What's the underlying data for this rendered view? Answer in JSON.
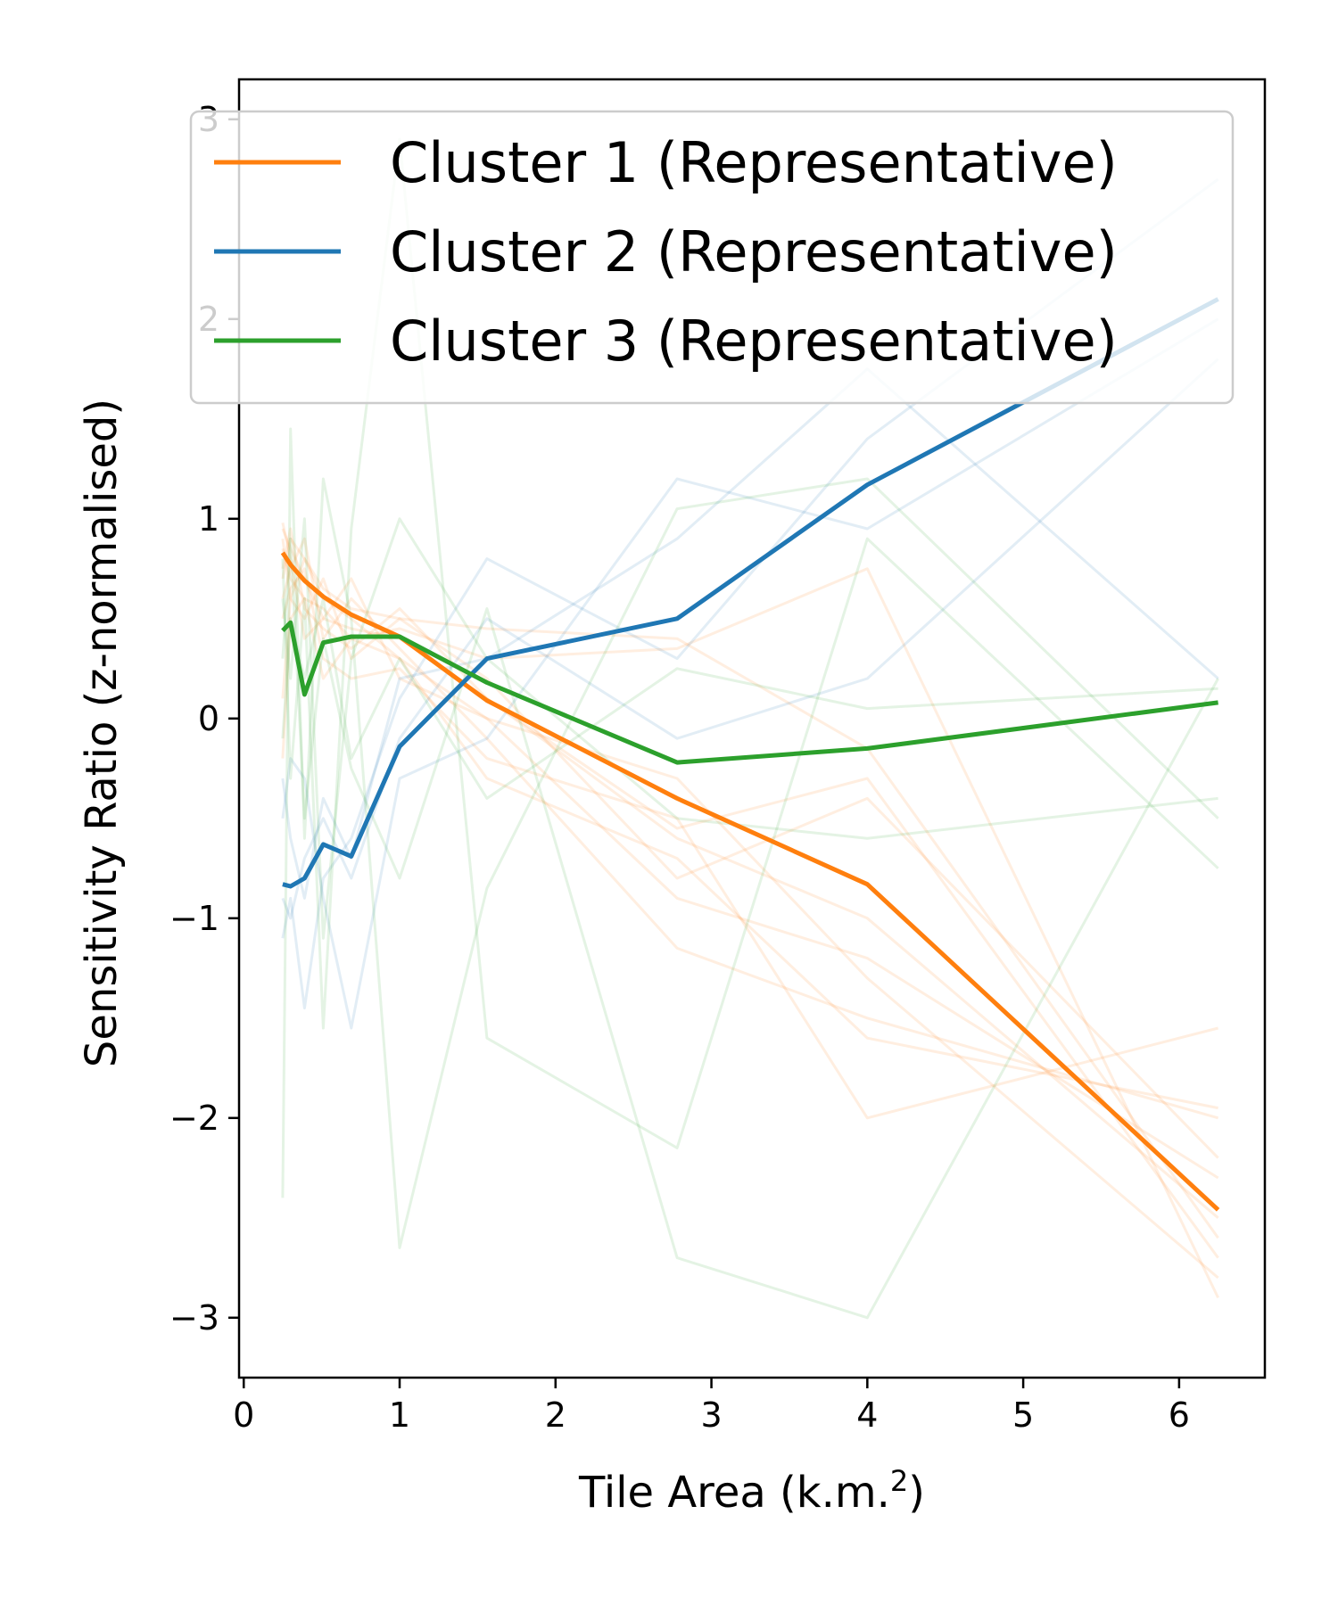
{
  "chart_data": {
    "type": "line",
    "xlabel": "Tile Area (k.m.",
    "xlabel_sup": "2",
    "xlabel_end": ")",
    "ylabel": "Sensitivity Ratio (z-normalised)",
    "xlim": [
      -0.03,
      6.55
    ],
    "ylim": [
      -3.3,
      3.2
    ],
    "x_ticks": [
      0,
      1,
      2,
      3,
      4,
      5,
      6
    ],
    "x_tick_labels": [
      "0",
      "1",
      "2",
      "3",
      "4",
      "5",
      "6"
    ],
    "y_ticks": [
      -3,
      -2,
      -1,
      0,
      1,
      2,
      3
    ],
    "y_tick_labels": [
      "−3",
      "−2",
      "−1",
      "0",
      "1",
      "2",
      "3"
    ],
    "grid": false,
    "legend_position": "top-right",
    "colors": {
      "cluster1": "#ff7f0e",
      "cluster2": "#1f77b4",
      "cluster3": "#2ca02c"
    },
    "x": [
      0.25,
      0.3,
      0.39,
      0.51,
      0.69,
      1.0,
      1.56,
      2.78,
      4.0,
      6.25
    ],
    "series": [
      {
        "name": "Cluster 1 (Representative)",
        "color": "#ff7f0e",
        "values": [
          0.83,
          0.77,
          0.69,
          0.61,
          0.52,
          0.41,
          0.09,
          -0.4,
          -0.83,
          -2.46
        ]
      },
      {
        "name": "Cluster 2 (Representative)",
        "color": "#1f77b4",
        "values": [
          -0.83,
          -0.84,
          -0.8,
          -0.63,
          -0.69,
          -0.14,
          0.3,
          0.5,
          1.17,
          2.1
        ]
      },
      {
        "name": "Cluster 3 (Representative)",
        "color": "#2ca02c",
        "values": [
          0.44,
          0.48,
          0.12,
          0.38,
          0.41,
          0.41,
          0.18,
          -0.22,
          -0.15,
          0.08
        ]
      }
    ],
    "background_series": [
      {
        "color": "#ff7f0e",
        "values": [
          0.95,
          0.85,
          0.7,
          0.5,
          0.45,
          0.4,
          0.1,
          -0.6,
          -1.0,
          -2.5
        ]
      },
      {
        "color": "#ff7f0e",
        "values": [
          0.7,
          0.9,
          0.8,
          0.6,
          0.5,
          0.3,
          0.0,
          -0.3,
          -1.3,
          -2.8
        ]
      },
      {
        "color": "#ff7f0e",
        "values": [
          0.9,
          0.6,
          0.5,
          0.7,
          0.3,
          0.5,
          0.2,
          -0.8,
          -0.4,
          -2.2
        ]
      },
      {
        "color": "#ff7f0e",
        "values": [
          0.6,
          0.75,
          0.9,
          0.4,
          0.6,
          0.35,
          -0.1,
          -1.15,
          -1.5,
          -2.0
        ]
      },
      {
        "color": "#ff7f0e",
        "values": [
          0.85,
          0.7,
          0.6,
          0.55,
          0.4,
          0.45,
          0.3,
          0.35,
          0.75,
          -2.9
        ]
      },
      {
        "color": "#ff7f0e",
        "values": [
          0.5,
          0.65,
          0.75,
          0.3,
          0.2,
          0.25,
          -0.2,
          -0.5,
          -2.0,
          -1.55
        ]
      },
      {
        "color": "#ff7f0e",
        "values": [
          0.1,
          0.6,
          0.8,
          0.65,
          0.55,
          0.5,
          0.45,
          0.4,
          -0.15,
          -2.6
        ]
      },
      {
        "color": "#ff7f0e",
        "values": [
          0.98,
          0.8,
          0.4,
          0.5,
          0.7,
          0.2,
          0.0,
          -0.9,
          -1.2,
          -2.3
        ]
      },
      {
        "color": "#ff7f0e",
        "values": [
          -0.2,
          0.5,
          0.6,
          0.2,
          0.4,
          0.3,
          -0.3,
          -0.7,
          -1.6,
          -1.95
        ]
      },
      {
        "color": "#ff7f0e",
        "values": [
          0.75,
          0.95,
          0.55,
          0.45,
          0.35,
          0.55,
          0.1,
          -0.55,
          -0.3,
          -2.7
        ]
      },
      {
        "color": "#1f77b4",
        "values": [
          -1.1,
          -0.9,
          -1.45,
          -0.8,
          -0.6,
          0.1,
          0.8,
          0.3,
          1.4,
          2.7
        ]
      },
      {
        "color": "#1f77b4",
        "values": [
          -0.5,
          -0.2,
          -0.3,
          -0.9,
          -1.55,
          -0.3,
          -0.1,
          1.2,
          0.95,
          2.0
        ]
      },
      {
        "color": "#1f77b4",
        "values": [
          -0.9,
          -1.0,
          -0.7,
          -0.5,
          -0.8,
          -0.1,
          0.5,
          -0.1,
          0.2,
          1.8
        ]
      },
      {
        "color": "#1f77b4",
        "values": [
          -0.3,
          -0.6,
          -0.9,
          -0.4,
          -0.7,
          0.2,
          0.3,
          0.9,
          1.75,
          0.2
        ]
      },
      {
        "color": "#2ca02c",
        "values": [
          -2.4,
          1.45,
          -0.6,
          1.2,
          0.5,
          -2.65,
          -0.85,
          1.05,
          1.2,
          -0.5
        ]
      },
      {
        "color": "#2ca02c",
        "values": [
          0.8,
          -0.3,
          0.6,
          -1.55,
          0.95,
          2.9,
          -1.6,
          -2.15,
          0.9,
          -0.75
        ]
      },
      {
        "color": "#2ca02c",
        "values": [
          0.3,
          0.9,
          -0.5,
          0.4,
          -0.25,
          -0.8,
          0.55,
          -2.7,
          -3.0,
          0.2
        ]
      },
      {
        "color": "#2ca02c",
        "values": [
          0.6,
          0.2,
          1.0,
          -1.1,
          0.3,
          1.0,
          0.3,
          -0.5,
          -0.6,
          -0.4
        ]
      },
      {
        "color": "#2ca02c",
        "values": [
          -0.1,
          0.5,
          0.2,
          0.6,
          -0.2,
          0.3,
          -0.4,
          0.25,
          0.05,
          0.15
        ]
      }
    ]
  }
}
